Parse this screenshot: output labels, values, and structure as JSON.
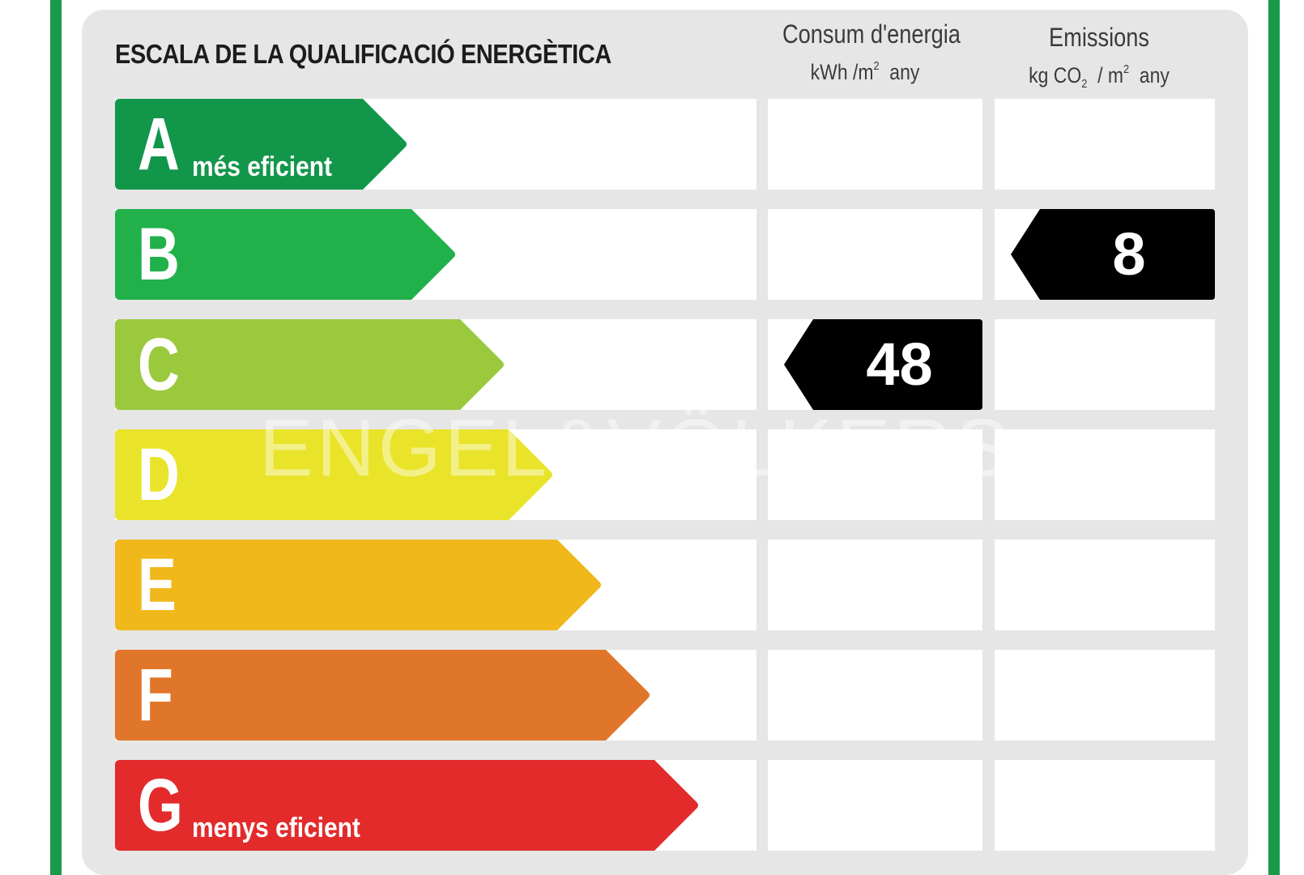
{
  "title": "ESCALA DE LA QUALIFICACIÓ ENERGÈTICA",
  "energy_header": {
    "line1": "Consum d'energia",
    "unit_main": "kWh /m",
    "unit_sup": "2",
    "unit_tail": "any"
  },
  "emissions_header": {
    "line1": "Emissions",
    "unit_a": "kg CO",
    "unit_sub": "2",
    "unit_b": "/ m",
    "unit_sup": "2",
    "unit_tail": "any"
  },
  "ratings": [
    {
      "letter": "A",
      "note": "més eficient",
      "color": "#12964a"
    },
    {
      "letter": "B",
      "note": "",
      "color": "#22b04b"
    },
    {
      "letter": "C",
      "note": "",
      "color": "#9bc93e"
    },
    {
      "letter": "D",
      "note": "",
      "color": "#e9e42a"
    },
    {
      "letter": "E",
      "note": "",
      "color": "#f0b81b"
    },
    {
      "letter": "F",
      "note": "",
      "color": "#e0762a"
    },
    {
      "letter": "G",
      "note": "menys eficient",
      "color": "#e32b2c"
    }
  ],
  "energy_rating": {
    "value": "48",
    "class": "C"
  },
  "emissions_rating": {
    "value": "8",
    "class": "B"
  },
  "watermark": "ENGEL&VÖLKERS",
  "colors": {
    "frame": "#1a9a48",
    "panel": "#e6e6e6",
    "badge": "#000000"
  }
}
